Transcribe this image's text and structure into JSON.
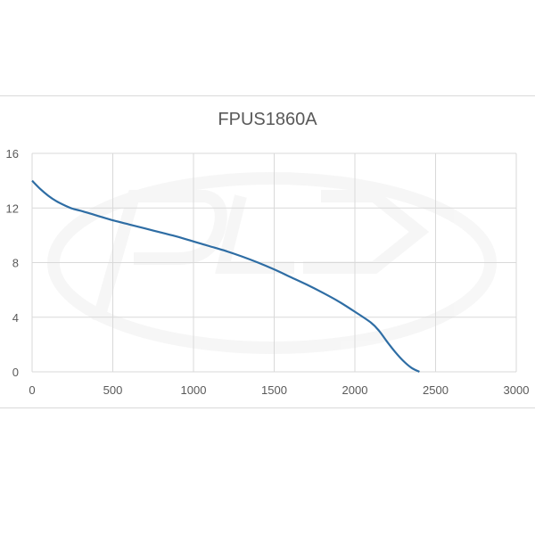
{
  "chart_data": {
    "type": "line",
    "title": "FPUS1860A",
    "xlabel": "",
    "ylabel": "",
    "xlim": [
      0,
      3000
    ],
    "ylim": [
      0,
      16
    ],
    "xticks": [
      0,
      500,
      1000,
      1500,
      2000,
      2500,
      3000
    ],
    "yticks": [
      0,
      4,
      8,
      12,
      16
    ],
    "grid": true,
    "legend": "none",
    "series": [
      {
        "color": "#2e6da4",
        "points": [
          [
            0,
            14
          ],
          [
            50,
            13.4
          ],
          [
            100,
            12.9
          ],
          [
            150,
            12.5
          ],
          [
            200,
            12.2
          ],
          [
            250,
            11.95
          ],
          [
            300,
            11.8
          ],
          [
            400,
            11.45
          ],
          [
            500,
            11.1
          ],
          [
            600,
            10.8
          ],
          [
            700,
            10.5
          ],
          [
            800,
            10.2
          ],
          [
            900,
            9.9
          ],
          [
            1000,
            9.55
          ],
          [
            1100,
            9.2
          ],
          [
            1200,
            8.85
          ],
          [
            1300,
            8.45
          ],
          [
            1400,
            8.0
          ],
          [
            1500,
            7.5
          ],
          [
            1600,
            6.95
          ],
          [
            1700,
            6.4
          ],
          [
            1800,
            5.8
          ],
          [
            1900,
            5.15
          ],
          [
            2000,
            4.4
          ],
          [
            2100,
            3.6
          ],
          [
            2150,
            3.0
          ],
          [
            2200,
            2.2
          ],
          [
            2250,
            1.45
          ],
          [
            2300,
            0.8
          ],
          [
            2350,
            0.3
          ],
          [
            2400,
            0
          ]
        ]
      }
    ]
  }
}
